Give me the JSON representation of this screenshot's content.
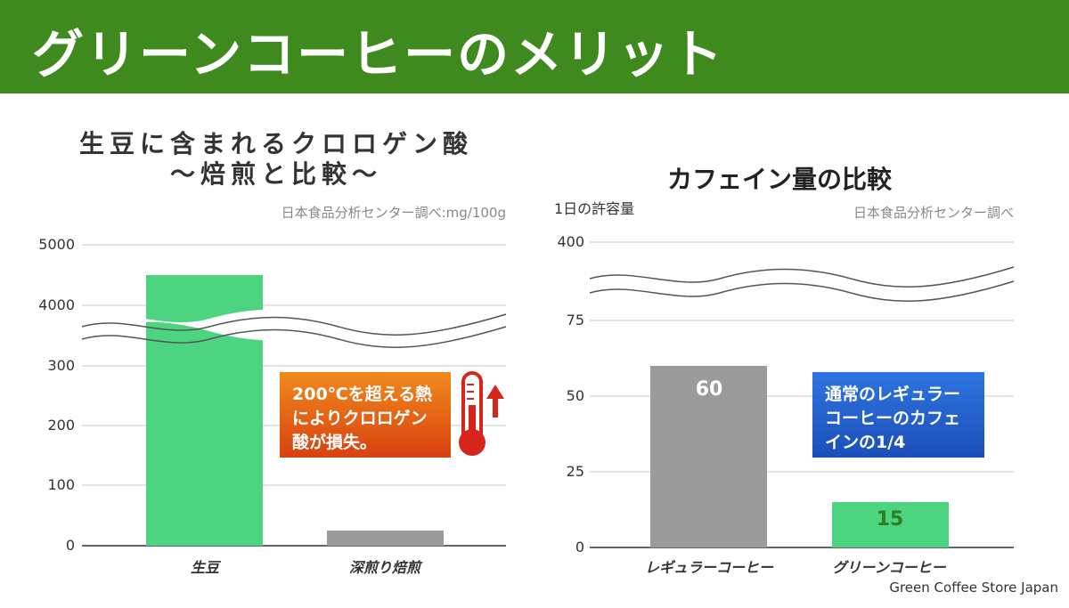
{
  "header": {
    "title": "グリーンコーヒーのメリット"
  },
  "footer": {
    "credit": "Green Coffee Store Japan"
  },
  "colors": {
    "banner": "#3f8a1f",
    "green_bar": "#4cd480",
    "gray_bar": "#9b9b9b",
    "orange": "#e8661a",
    "blue": "#2563d8"
  },
  "icons": {
    "thermometer": "thermometer-icon",
    "arrow": "up-arrow-icon"
  },
  "chart_data": [
    {
      "type": "bar",
      "title": "生豆に含まれるクロロゲン酸",
      "subtitle": "〜焙煎と比較〜",
      "source": "日本食品分析センター調べ:mg/100g",
      "categories": [
        "生豆",
        "深煎り焙煎"
      ],
      "values": [
        4500,
        25
      ],
      "bar_colors": [
        "#4cd480",
        "#9b9b9b"
      ],
      "yticks": [
        "0",
        "100",
        "200",
        "300",
        "4000",
        "5000"
      ],
      "axis_break": true,
      "grid": true,
      "callout": "200℃を超える熱によりクロロゲン酸が損失。"
    },
    {
      "type": "bar",
      "title": "カフェイン量の比較",
      "ylabel": "1日の許容量",
      "source": "日本食品分析センター調べ",
      "categories": [
        "レギュラーコーヒー",
        "グリーンコーヒー"
      ],
      "values": [
        60,
        15
      ],
      "data_labels": [
        "60",
        "15"
      ],
      "bar_colors": [
        "#9b9b9b",
        "#4cd480"
      ],
      "yticks": [
        "0",
        "25",
        "50",
        "75",
        "400"
      ],
      "ylim": [
        0,
        75
      ],
      "axis_break": true,
      "grid": true,
      "callout": "通常のレギュラーコーヒーのカフェインの1/4"
    }
  ]
}
